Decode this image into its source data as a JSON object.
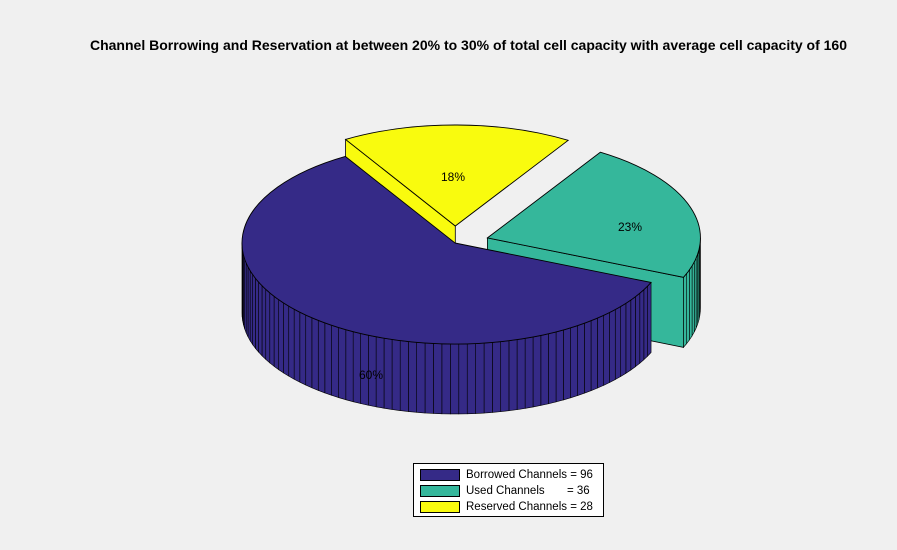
{
  "chart_data": {
    "type": "pie",
    "title": "Channel Borrowing and Reservation at between 20% to 30% of total cell capacity with average cell capacity of 160",
    "slices": [
      {
        "name": "Borrowed Channels",
        "value": 96,
        "percent_label": "60%",
        "color": "#352a87",
        "exploded": false,
        "legend_label": "Borrowed Channels = 96"
      },
      {
        "name": "Used Channels",
        "value": 36,
        "percent_label": "23%",
        "color": "#35b79b",
        "exploded": true,
        "legend_label": "Used Channels       = 36"
      },
      {
        "name": "Reserved Channels",
        "value": 28,
        "percent_label": "18%",
        "color": "#f9fb0e",
        "exploded": true,
        "legend_label": "Reserved Channels = 28"
      }
    ],
    "legend_position": "bottom"
  }
}
